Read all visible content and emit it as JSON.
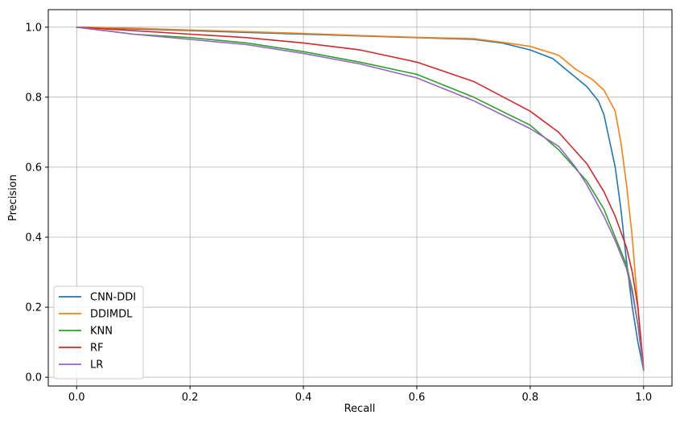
{
  "chart_data": {
    "type": "line",
    "title": "",
    "xlabel": "Recall",
    "ylabel": "Precision",
    "xlim": [
      -0.05,
      1.05
    ],
    "ylim": [
      -0.025,
      1.05
    ],
    "xticks": [
      0.0,
      0.2,
      0.4,
      0.6,
      0.8,
      1.0
    ],
    "xtick_labels": [
      "0.0",
      "0.2",
      "0.4",
      "0.6",
      "0.8",
      "1.0"
    ],
    "yticks": [
      0.0,
      0.2,
      0.4,
      0.6,
      0.8,
      1.0
    ],
    "ytick_labels": [
      "0.0",
      "0.2",
      "0.4",
      "0.6",
      "0.8",
      "1.0"
    ],
    "grid": true,
    "legend_position": "lower-left",
    "series": [
      {
        "name": "CNN-DDI",
        "color": "#1f77b4",
        "points": [
          [
            0.0,
            1.0
          ],
          [
            0.02,
            0.998
          ],
          [
            0.1,
            0.995
          ],
          [
            0.2,
            0.99
          ],
          [
            0.3,
            0.985
          ],
          [
            0.4,
            0.98
          ],
          [
            0.5,
            0.975
          ],
          [
            0.6,
            0.97
          ],
          [
            0.7,
            0.965
          ],
          [
            0.75,
            0.955
          ],
          [
            0.8,
            0.935
          ],
          [
            0.84,
            0.91
          ],
          [
            0.87,
            0.87
          ],
          [
            0.9,
            0.83
          ],
          [
            0.92,
            0.79
          ],
          [
            0.93,
            0.75
          ],
          [
            0.95,
            0.6
          ],
          [
            0.96,
            0.48
          ],
          [
            0.97,
            0.33
          ],
          [
            0.98,
            0.2
          ],
          [
            0.99,
            0.1
          ],
          [
            1.0,
            0.02
          ]
        ]
      },
      {
        "name": "DDIMDL",
        "color": "#ff7f0e",
        "points": [
          [
            0.0,
            1.0
          ],
          [
            0.02,
            1.0
          ],
          [
            0.1,
            0.997
          ],
          [
            0.2,
            0.992
          ],
          [
            0.3,
            0.987
          ],
          [
            0.4,
            0.982
          ],
          [
            0.5,
            0.976
          ],
          [
            0.6,
            0.971
          ],
          [
            0.7,
            0.967
          ],
          [
            0.75,
            0.957
          ],
          [
            0.8,
            0.945
          ],
          [
            0.85,
            0.92
          ],
          [
            0.88,
            0.88
          ],
          [
            0.91,
            0.85
          ],
          [
            0.93,
            0.82
          ],
          [
            0.95,
            0.76
          ],
          [
            0.96,
            0.67
          ],
          [
            0.97,
            0.55
          ],
          [
            0.98,
            0.4
          ],
          [
            0.99,
            0.2
          ],
          [
            1.0,
            0.03
          ]
        ]
      },
      {
        "name": "KNN",
        "color": "#2ca02c",
        "points": [
          [
            0.0,
            1.0
          ],
          [
            0.05,
            0.99
          ],
          [
            0.1,
            0.98
          ],
          [
            0.2,
            0.97
          ],
          [
            0.3,
            0.955
          ],
          [
            0.4,
            0.93
          ],
          [
            0.5,
            0.9
          ],
          [
            0.6,
            0.865
          ],
          [
            0.7,
            0.8
          ],
          [
            0.8,
            0.72
          ],
          [
            0.85,
            0.65
          ],
          [
            0.9,
            0.56
          ],
          [
            0.93,
            0.48
          ],
          [
            0.95,
            0.4
          ],
          [
            0.97,
            0.32
          ],
          [
            0.98,
            0.25
          ],
          [
            0.99,
            0.15
          ],
          [
            1.0,
            0.02
          ]
        ]
      },
      {
        "name": "RF",
        "color": "#d62728",
        "points": [
          [
            0.0,
            1.0
          ],
          [
            0.05,
            0.995
          ],
          [
            0.1,
            0.99
          ],
          [
            0.2,
            0.98
          ],
          [
            0.3,
            0.97
          ],
          [
            0.4,
            0.955
          ],
          [
            0.5,
            0.935
          ],
          [
            0.6,
            0.9
          ],
          [
            0.7,
            0.845
          ],
          [
            0.8,
            0.76
          ],
          [
            0.85,
            0.7
          ],
          [
            0.9,
            0.61
          ],
          [
            0.93,
            0.53
          ],
          [
            0.95,
            0.46
          ],
          [
            0.97,
            0.37
          ],
          [
            0.98,
            0.3
          ],
          [
            0.99,
            0.2
          ],
          [
            1.0,
            0.02
          ]
        ]
      },
      {
        "name": "LR",
        "color": "#9467bd",
        "points": [
          [
            0.0,
            1.0
          ],
          [
            0.05,
            0.99
          ],
          [
            0.1,
            0.98
          ],
          [
            0.2,
            0.965
          ],
          [
            0.3,
            0.95
          ],
          [
            0.4,
            0.925
          ],
          [
            0.5,
            0.895
          ],
          [
            0.6,
            0.855
          ],
          [
            0.7,
            0.79
          ],
          [
            0.8,
            0.71
          ],
          [
            0.82,
            0.69
          ],
          [
            0.85,
            0.66
          ],
          [
            0.88,
            0.6
          ],
          [
            0.9,
            0.55
          ],
          [
            0.93,
            0.46
          ],
          [
            0.95,
            0.39
          ],
          [
            0.97,
            0.31
          ],
          [
            0.98,
            0.24
          ],
          [
            0.99,
            0.15
          ],
          [
            1.0,
            0.02
          ]
        ]
      }
    ]
  }
}
